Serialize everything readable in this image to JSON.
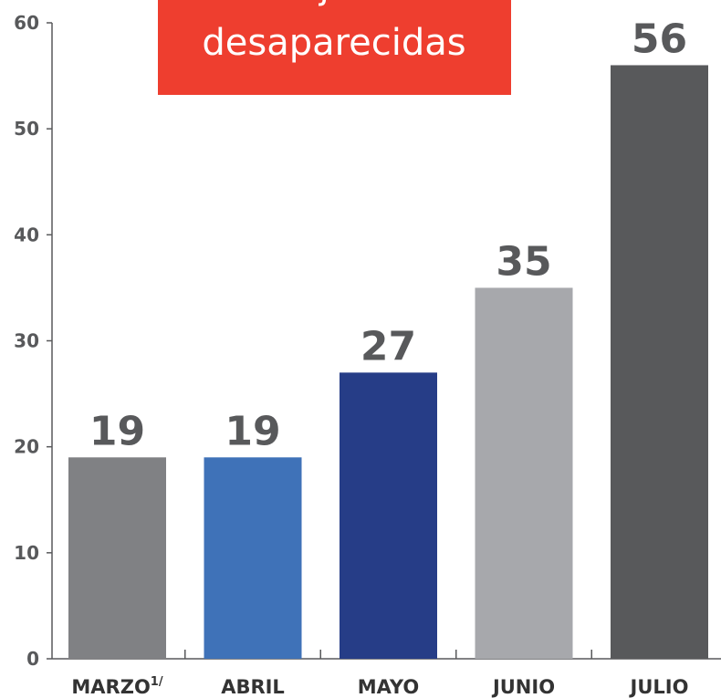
{
  "chart_data": {
    "type": "bar",
    "title": [
      "mujeres",
      "desaparecidas"
    ],
    "categories": [
      "MARZO",
      "ABRIL",
      "MAYO",
      "JUNIO",
      "JULIO"
    ],
    "superscripts": [
      "1/",
      null,
      null,
      null,
      null
    ],
    "values": [
      19,
      19,
      27,
      35,
      56
    ],
    "colors": [
      "#808184",
      "#3f72b8",
      "#263d87",
      "#a7a8ac",
      "#58595b"
    ],
    "ylim": [
      0,
      60
    ],
    "yticks": [
      0,
      10,
      20,
      30,
      40,
      50,
      60
    ],
    "grid": false
  }
}
